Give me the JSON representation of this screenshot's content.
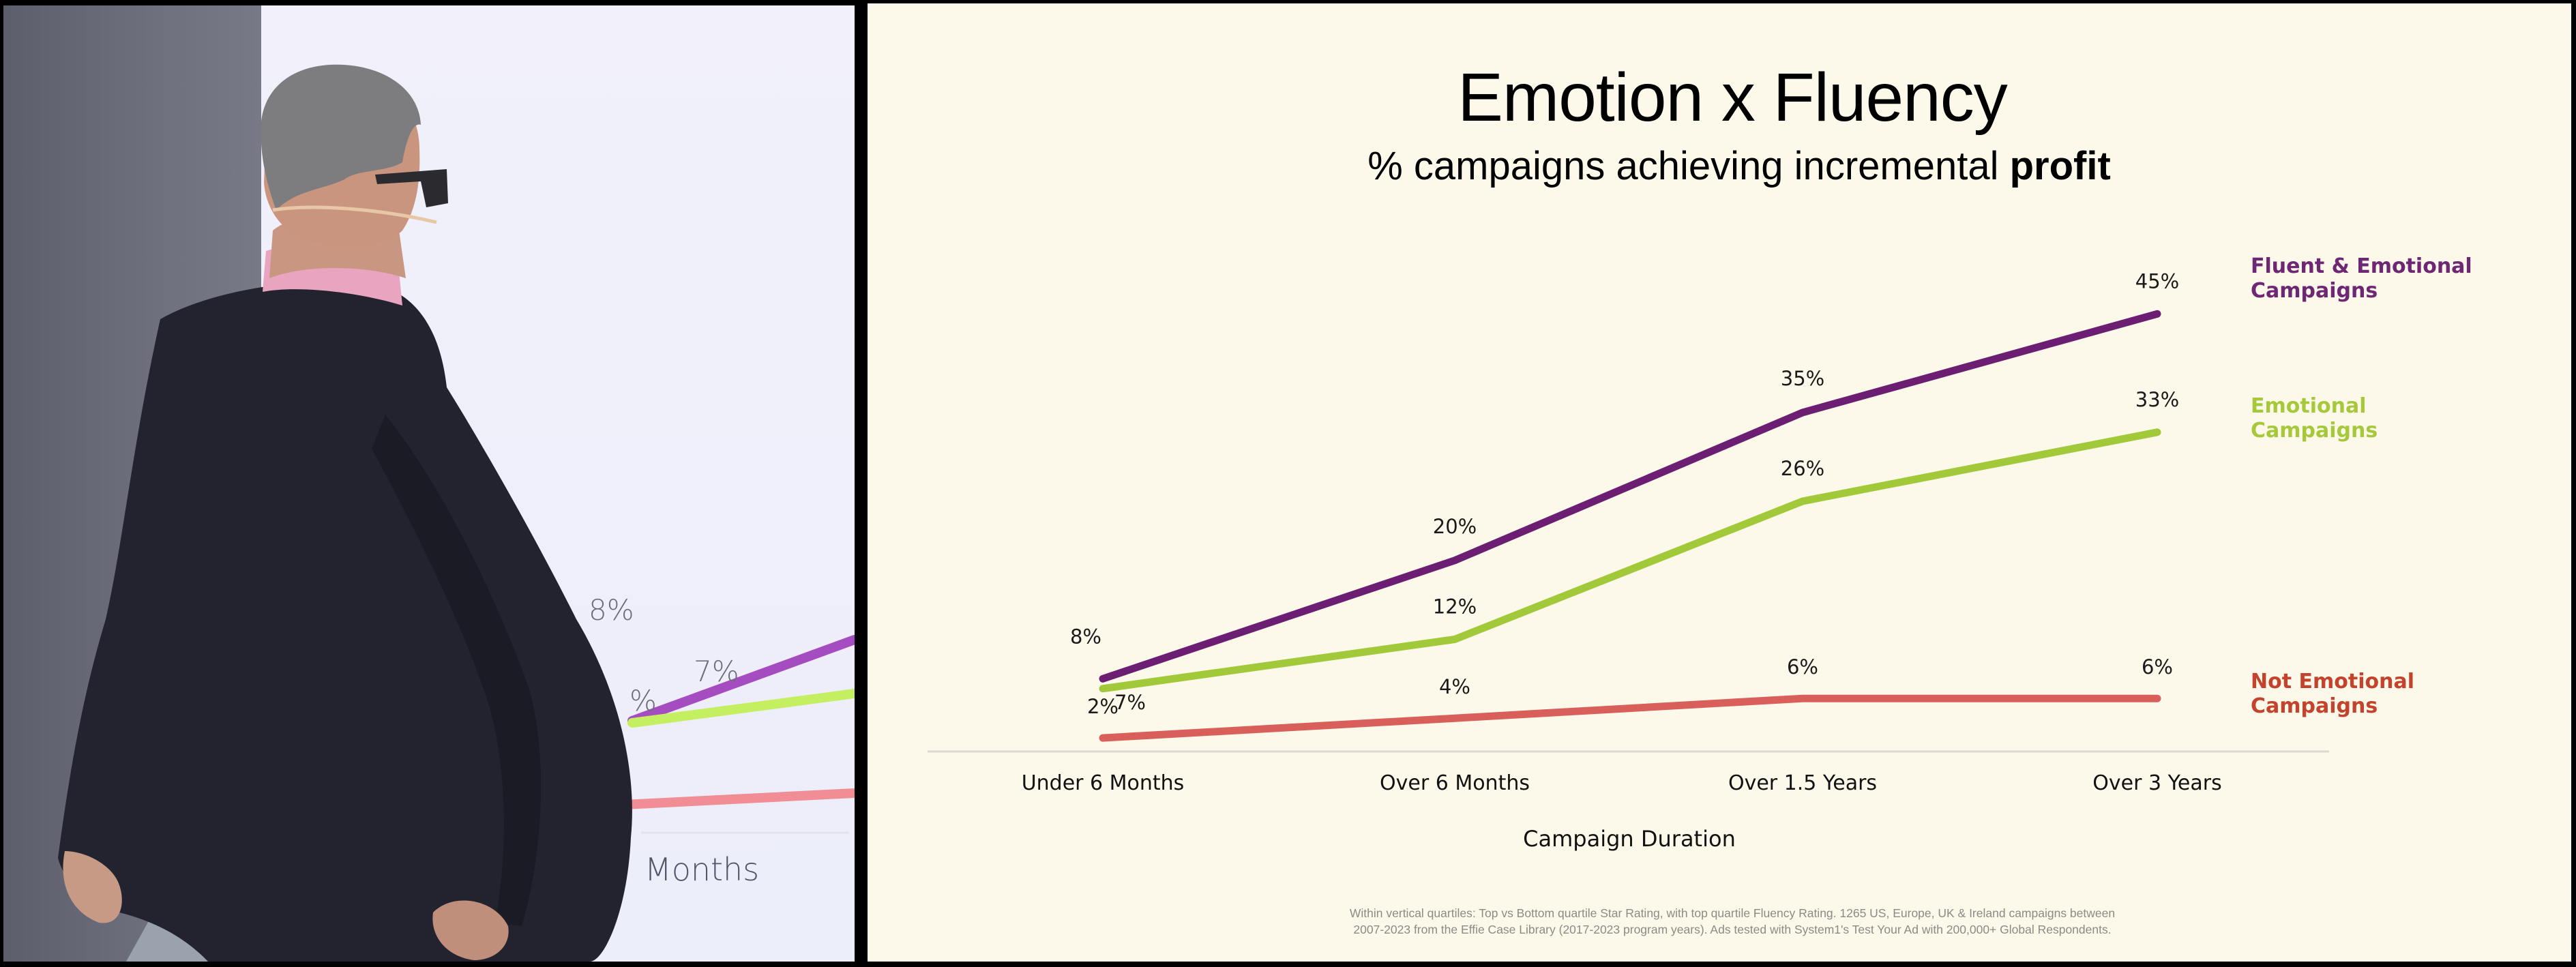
{
  "video": {
    "label_8": "8%",
    "label_7": "7%",
    "label_2": "%",
    "label_months": "Months",
    "colors": {
      "purple": "#a54dc0",
      "green": "#c4ef60",
      "pink": "#f08d95"
    }
  },
  "slide": {
    "title": "Emotion x Fluency",
    "subtitle_prefix": "% campaigns achieving incremental ",
    "subtitle_bold": "profit",
    "footnote_line1": "Within vertical quartiles: Top vs Bottom quartile Star Rating, with top quartile Fluency Rating. 1265 US, Europe, UK & Ireland campaigns between",
    "footnote_line2": "2007-2023 from the Effie Case Library (2017-2023 program years). Ads tested with System1's Test Your Ad with 200,000+ Global Respondents."
  },
  "chart_data": {
    "type": "line",
    "title": "Emotion x Fluency",
    "subtitle": "% campaigns achieving incremental profit",
    "xlabel": "Campaign Duration",
    "ylabel": "",
    "categories": [
      "Under 6 Months",
      "Over 6 Months",
      "Over 1.5 Years",
      "Over 3 Years"
    ],
    "ylim": [
      0,
      50
    ],
    "grid": false,
    "legend": "right",
    "series": [
      {
        "name": "Fluent & Emotional Campaigns",
        "legend_line1": "Fluent & Emotional",
        "legend_line2": "Campaigns",
        "color": "#6b1e72",
        "legend_color": "#6e2773",
        "values": [
          8,
          20,
          35,
          45
        ],
        "labels": [
          "8%",
          "20%",
          "35%",
          "45%"
        ]
      },
      {
        "name": "Emotional Campaigns",
        "legend_line1": "Emotional",
        "legend_line2": "Campaigns",
        "color": "#a2c93a",
        "legend_color": "#a6c93b",
        "values": [
          7,
          12,
          26,
          33
        ],
        "labels": [
          "7%",
          "12%",
          "26%",
          "33%"
        ]
      },
      {
        "name": "Not Emotional Campaigns",
        "legend_line1": "Not Emotional",
        "legend_line2": "Campaigns",
        "color": "#d9605a",
        "legend_color": "#c4432c",
        "values": [
          2,
          4,
          6,
          6
        ],
        "labels": [
          "2%",
          "4%",
          "6%",
          "6%"
        ]
      }
    ]
  }
}
